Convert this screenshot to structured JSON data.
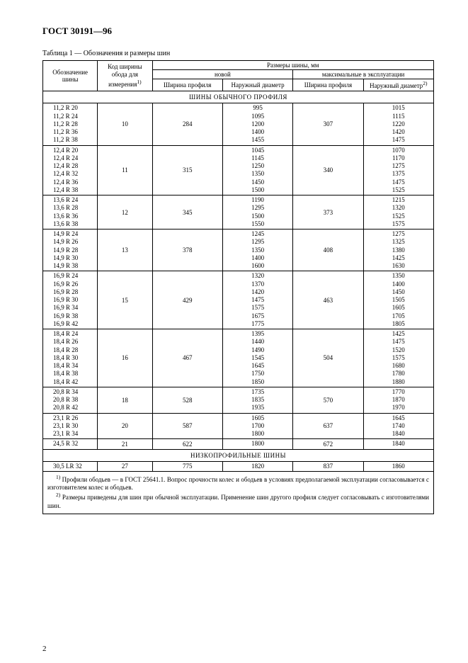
{
  "doc_title": "ГОСТ 30191—96",
  "table_caption": "Таблица 1 — Обозначения и размеры шин",
  "headers": {
    "col1": "Обозначение шины",
    "col2_l1": "Код ширины",
    "col2_l2": "обода для",
    "col2_l3": "измерения",
    "col2_sup": "1)",
    "top_span": "Размеры шины, мм",
    "new": "новой",
    "max": "максимальные в эксплуатации",
    "profile_width": "Ширина профиля",
    "outer_dia": "Наружный диаметр",
    "outer_dia_sup": "2)"
  },
  "section1": "ШИНЫ ОБЫЧНОГО ПРОФИЛЯ",
  "section2": "НИЗКОПРОФИЛЬНЫЕ ШИНЫ",
  "groups": [
    {
      "sizes": [
        "11,2 R 20",
        "11,2 R 24",
        "11,2 R 28",
        "11,2 R 36",
        "11,2 R 38"
      ],
      "code": "10",
      "pw": "284",
      "od": [
        "995",
        "1095",
        "1200",
        "1400",
        "1455"
      ],
      "mpw": "307",
      "mod": [
        "1015",
        "1115",
        "1220",
        "1420",
        "1475"
      ]
    },
    {
      "sizes": [
        "12,4 R 20",
        "12,4 R 24",
        "12,4 R 28",
        "12,4 R 32",
        "12,4 R 36",
        "12,4 R 38"
      ],
      "code": "11",
      "pw": "315",
      "od": [
        "1045",
        "1145",
        "1250",
        "1350",
        "1450",
        "1500"
      ],
      "mpw": "340",
      "mod": [
        "1070",
        "1170",
        "1275",
        "1375",
        "1475",
        "1525"
      ]
    },
    {
      "sizes": [
        "13,6 R 24",
        "13,6 R 28",
        "13,6 R 36",
        "13,6 R 38"
      ],
      "code": "12",
      "pw": "345",
      "od": [
        "1190",
        "1295",
        "1500",
        "1550"
      ],
      "mpw": "373",
      "mod": [
        "1215",
        "1320",
        "1525",
        "1575"
      ]
    },
    {
      "sizes": [
        "14,9 R 24",
        "14,9 R 26",
        "14,9 R 28",
        "14,9 R 30",
        "14,9 R 38"
      ],
      "code": "13",
      "pw": "378",
      "od": [
        "1245",
        "1295",
        "1350",
        "1400",
        "1600"
      ],
      "mpw": "408",
      "mod": [
        "1275",
        "1325",
        "1380",
        "1425",
        "1630"
      ]
    },
    {
      "sizes": [
        "16,9 R 24",
        "16,9 R 26",
        "16,9 R 28",
        "16,9 R 30",
        "16,9 R 34",
        "16,9 R 38",
        "16,9 R 42"
      ],
      "code": "15",
      "pw": "429",
      "od": [
        "1320",
        "1370",
        "1420",
        "1475",
        "1575",
        "1675",
        "1775"
      ],
      "mpw": "463",
      "mod": [
        "1350",
        "1400",
        "1450",
        "1505",
        "1605",
        "1705",
        "1805"
      ]
    },
    {
      "sizes": [
        "18,4 R 24",
        "18,4 R 26",
        "18,4 R 28",
        "18,4 R 30",
        "18,4 R 34",
        "18,4 R 38",
        "18,4 R 42"
      ],
      "code": "16",
      "pw": "467",
      "od": [
        "1395",
        "1440",
        "1490",
        "1545",
        "1645",
        "1750",
        "1850"
      ],
      "mpw": "504",
      "mod": [
        "1425",
        "1475",
        "1520",
        "1575",
        "1680",
        "1780",
        "1880"
      ]
    },
    {
      "sizes": [
        "20,8 R 34",
        "20,8 R 38",
        "20,8 R 42"
      ],
      "code": "18",
      "pw": "528",
      "od": [
        "1735",
        "1835",
        "1935"
      ],
      "mpw": "570",
      "mod": [
        "1770",
        "1870",
        "1970"
      ]
    },
    {
      "sizes": [
        "23,1 R 26",
        "23,1 R 30",
        "23,1 R 34"
      ],
      "code": "20",
      "pw": "587",
      "od": [
        "1605",
        "1700",
        "1800"
      ],
      "mpw": "637",
      "mod": [
        "1645",
        "1740",
        "1840"
      ]
    },
    {
      "sizes": [
        "24,5 R 32"
      ],
      "code": "21",
      "pw": "622",
      "od": [
        "1800"
      ],
      "mpw": "672",
      "mod": [
        "1840"
      ]
    }
  ],
  "low_profile": {
    "sizes": [
      "30,5 LR 32"
    ],
    "code": "27",
    "pw": "775",
    "od": [
      "1820"
    ],
    "mpw": "837",
    "mod": [
      "1860"
    ]
  },
  "footnote1_sup": "1)",
  "footnote1": " Профили ободьев — в ГОСТ 25641.1. Вопрос прочности колес и ободьев в условиях предполагаемой эксплуатации согласовывается с изготовителем колес и ободьев.",
  "footnote2_sup": "2)",
  "footnote2": " Размеры приведены для шин при обычной эксплуатации. Применение шин другого профиля следует согласовывать с изготовителями шин.",
  "page_number": "2"
}
